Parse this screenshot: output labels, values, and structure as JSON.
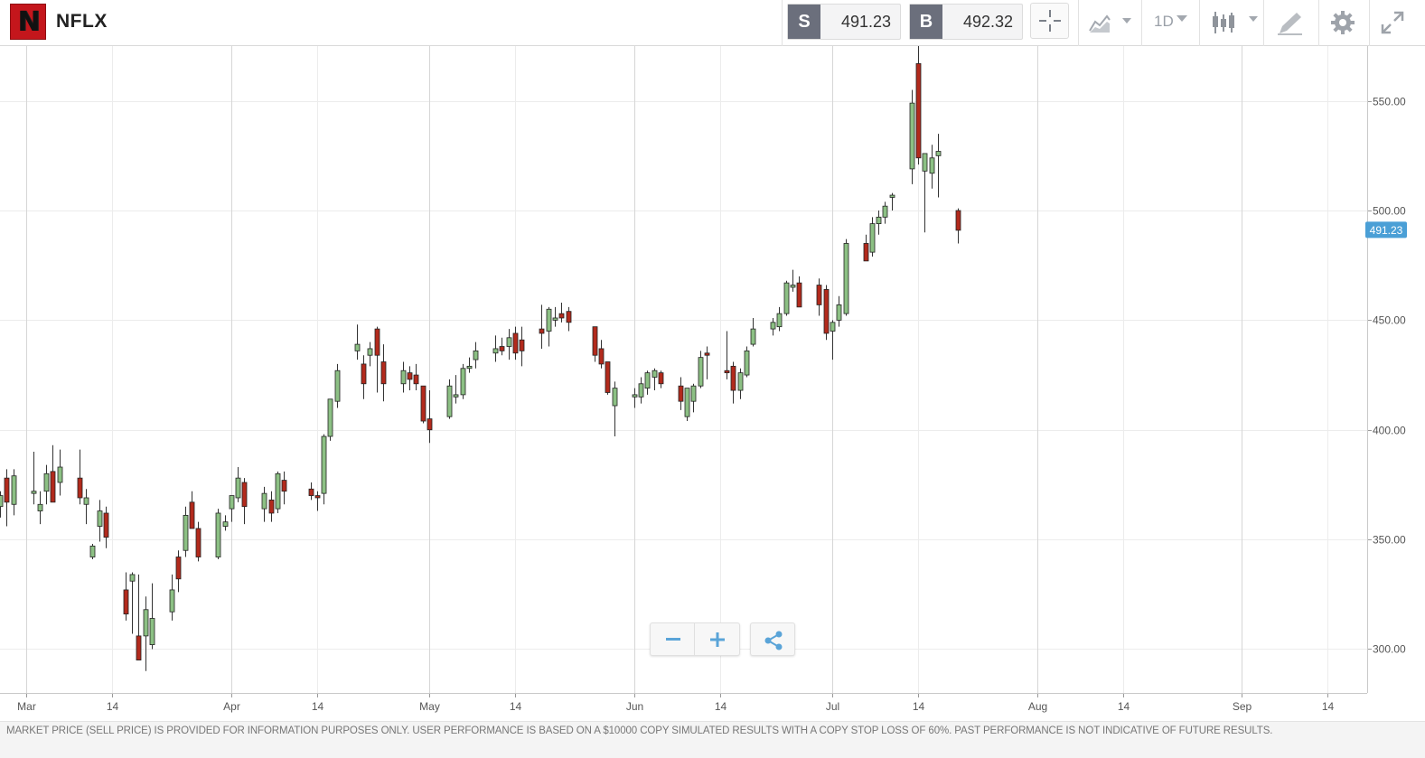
{
  "header": {
    "logo_letter": "N",
    "symbol": "NFLX",
    "sell": {
      "tag": "S",
      "price": "491.23"
    },
    "buy": {
      "tag": "B",
      "price": "492.32"
    },
    "timeframe": "1D"
  },
  "colors": {
    "bull": "#8cc084",
    "bear": "#b22a1c",
    "current_price_badge": "#4a9fd6",
    "grid": "#ececec",
    "month_line": "#d6d6d6"
  },
  "chart_data": {
    "type": "candlestick",
    "title": "",
    "ylim": [
      280,
      575
    ],
    "y_ticks": [
      300,
      350,
      400,
      450,
      500,
      550
    ],
    "y_tick_labels": [
      "300.00",
      "350.00",
      "400.00",
      "450.00",
      "500.00",
      "550.00"
    ],
    "x_range": [
      "2020-02-26",
      "2020-09-20"
    ],
    "x_ticks": [
      {
        "date": "2020-03-01",
        "label": "Mar",
        "month": true
      },
      {
        "date": "2020-03-14",
        "label": "14",
        "month": false
      },
      {
        "date": "2020-04-01",
        "label": "Apr",
        "month": true
      },
      {
        "date": "2020-04-14",
        "label": "14",
        "month": false
      },
      {
        "date": "2020-05-01",
        "label": "May",
        "month": true
      },
      {
        "date": "2020-05-14",
        "label": "14",
        "month": false
      },
      {
        "date": "2020-06-01",
        "label": "Jun",
        "month": true
      },
      {
        "date": "2020-06-14",
        "label": "14",
        "month": false
      },
      {
        "date": "2020-07-01",
        "label": "Jul",
        "month": true
      },
      {
        "date": "2020-07-14",
        "label": "14",
        "month": false
      },
      {
        "date": "2020-08-01",
        "label": "Aug",
        "month": true
      },
      {
        "date": "2020-08-14",
        "label": "14",
        "month": false
      },
      {
        "date": "2020-09-01",
        "label": "Sep",
        "month": true
      },
      {
        "date": "2020-09-14",
        "label": "14",
        "month": false
      }
    ],
    "current_price": 491.23,
    "current_price_label": "491.23",
    "candles": [
      {
        "date": "2020-02-26",
        "open": 365,
        "high": 372,
        "low": 360,
        "close": 370
      },
      {
        "date": "2020-02-27",
        "open": 378,
        "high": 382,
        "low": 356,
        "close": 367
      },
      {
        "date": "2020-02-28",
        "open": 366,
        "high": 382,
        "low": 361,
        "close": 379
      },
      {
        "date": "2020-03-02",
        "open": 371,
        "high": 390,
        "low": 366,
        "close": 372
      },
      {
        "date": "2020-03-03",
        "open": 363,
        "high": 372,
        "low": 357,
        "close": 366
      },
      {
        "date": "2020-03-04",
        "open": 372,
        "high": 384,
        "low": 366,
        "close": 380
      },
      {
        "date": "2020-03-05",
        "open": 381,
        "high": 393,
        "low": 367,
        "close": 367
      },
      {
        "date": "2020-03-06",
        "open": 376,
        "high": 391,
        "low": 370,
        "close": 383
      },
      {
        "date": "2020-03-09",
        "open": 378,
        "high": 391,
        "low": 366,
        "close": 369
      },
      {
        "date": "2020-03-10",
        "open": 366,
        "high": 373,
        "low": 357,
        "close": 369
      },
      {
        "date": "2020-03-11",
        "open": 342,
        "high": 348,
        "low": 341,
        "close": 347
      },
      {
        "date": "2020-03-12",
        "open": 356,
        "high": 368,
        "low": 349,
        "close": 363
      },
      {
        "date": "2020-03-13",
        "open": 362,
        "high": 365,
        "low": 346,
        "close": 351
      },
      {
        "date": "2020-03-16",
        "open": 327,
        "high": 335,
        "low": 313,
        "close": 316
      },
      {
        "date": "2020-03-17",
        "open": 331,
        "high": 335,
        "low": 307,
        "close": 334
      },
      {
        "date": "2020-03-18",
        "open": 306,
        "high": 334,
        "low": 295,
        "close": 295
      },
      {
        "date": "2020-03-19",
        "open": 306,
        "high": 324,
        "low": 290,
        "close": 318
      },
      {
        "date": "2020-03-20",
        "open": 302,
        "high": 330,
        "low": 300,
        "close": 314
      },
      {
        "date": "2020-03-23",
        "open": 317,
        "high": 334,
        "low": 313,
        "close": 327
      },
      {
        "date": "2020-03-24",
        "open": 342,
        "high": 345,
        "low": 326,
        "close": 332
      },
      {
        "date": "2020-03-25",
        "open": 345,
        "high": 365,
        "low": 342,
        "close": 361
      },
      {
        "date": "2020-03-26",
        "open": 367,
        "high": 372,
        "low": 355,
        "close": 355
      },
      {
        "date": "2020-03-27",
        "open": 355,
        "high": 358,
        "low": 340,
        "close": 342
      },
      {
        "date": "2020-03-30",
        "open": 342,
        "high": 364,
        "low": 341,
        "close": 362
      },
      {
        "date": "2020-03-31",
        "open": 356,
        "high": 361,
        "low": 354,
        "close": 358
      },
      {
        "date": "2020-04-01",
        "open": 364,
        "high": 370,
        "low": 358,
        "close": 370
      },
      {
        "date": "2020-04-02",
        "open": 369,
        "high": 383,
        "low": 367,
        "close": 378
      },
      {
        "date": "2020-04-03",
        "open": 376,
        "high": 378,
        "low": 357,
        "close": 365
      },
      {
        "date": "2020-04-06",
        "open": 364,
        "high": 374,
        "low": 358,
        "close": 371
      },
      {
        "date": "2020-04-07",
        "open": 368,
        "high": 372,
        "low": 358,
        "close": 362
      },
      {
        "date": "2020-04-08",
        "open": 364,
        "high": 381,
        "low": 362,
        "close": 380
      },
      {
        "date": "2020-04-09",
        "open": 377,
        "high": 381,
        "low": 366,
        "close": 372
      },
      {
        "date": "2020-04-13",
        "open": 373,
        "high": 376,
        "low": 368,
        "close": 370
      },
      {
        "date": "2020-04-14",
        "open": 370,
        "high": 372,
        "low": 363,
        "close": 369
      },
      {
        "date": "2020-04-15",
        "open": 371,
        "high": 398,
        "low": 366,
        "close": 397
      },
      {
        "date": "2020-04-16",
        "open": 397,
        "high": 414,
        "low": 395,
        "close": 414
      },
      {
        "date": "2020-04-17",
        "open": 413,
        "high": 430,
        "low": 410,
        "close": 427
      },
      {
        "date": "2020-04-20",
        "open": 436,
        "high": 448,
        "low": 432,
        "close": 439
      },
      {
        "date": "2020-04-21",
        "open": 430,
        "high": 434,
        "low": 414,
        "close": 421
      },
      {
        "date": "2020-04-22",
        "open": 434,
        "high": 440,
        "low": 429,
        "close": 437
      },
      {
        "date": "2020-04-23",
        "open": 446,
        "high": 447,
        "low": 417,
        "close": 434
      },
      {
        "date": "2020-04-24",
        "open": 431,
        "high": 439,
        "low": 413,
        "close": 421
      },
      {
        "date": "2020-04-27",
        "open": 421,
        "high": 431,
        "low": 417,
        "close": 427
      },
      {
        "date": "2020-04-28",
        "open": 426,
        "high": 429,
        "low": 418,
        "close": 423
      },
      {
        "date": "2020-04-29",
        "open": 425,
        "high": 430,
        "low": 418,
        "close": 421
      },
      {
        "date": "2020-04-30",
        "open": 420,
        "high": 420,
        "low": 403,
        "close": 404
      },
      {
        "date": "2020-05-01",
        "open": 405,
        "high": 418,
        "low": 394,
        "close": 400
      },
      {
        "date": "2020-05-04",
        "open": 406,
        "high": 423,
        "low": 405,
        "close": 420
      },
      {
        "date": "2020-05-05",
        "open": 415,
        "high": 425,
        "low": 412,
        "close": 416
      },
      {
        "date": "2020-05-06",
        "open": 416,
        "high": 430,
        "low": 414,
        "close": 428
      },
      {
        "date": "2020-05-07",
        "open": 428,
        "high": 433,
        "low": 426,
        "close": 429
      },
      {
        "date": "2020-05-08",
        "open": 432,
        "high": 440,
        "low": 428,
        "close": 436
      },
      {
        "date": "2020-05-11",
        "open": 435,
        "high": 443,
        "low": 431,
        "close": 437
      },
      {
        "date": "2020-05-12",
        "open": 438,
        "high": 442,
        "low": 434,
        "close": 436
      },
      {
        "date": "2020-05-13",
        "open": 438,
        "high": 446,
        "low": 432,
        "close": 442
      },
      {
        "date": "2020-05-14",
        "open": 444,
        "high": 447,
        "low": 432,
        "close": 435
      },
      {
        "date": "2020-05-15",
        "open": 441,
        "high": 447,
        "low": 429,
        "close": 436
      },
      {
        "date": "2020-05-18",
        "open": 446,
        "high": 457,
        "low": 437,
        "close": 444
      },
      {
        "date": "2020-05-19",
        "open": 445,
        "high": 456,
        "low": 438,
        "close": 455
      },
      {
        "date": "2020-05-20",
        "open": 450,
        "high": 456,
        "low": 447,
        "close": 451
      },
      {
        "date": "2020-05-21",
        "open": 453,
        "high": 458,
        "low": 449,
        "close": 451
      },
      {
        "date": "2020-05-22",
        "open": 454,
        "high": 456,
        "low": 445,
        "close": 449
      },
      {
        "date": "2020-05-26",
        "open": 447,
        "high": 447,
        "low": 431,
        "close": 434
      },
      {
        "date": "2020-05-27",
        "open": 437,
        "high": 441,
        "low": 428,
        "close": 430
      },
      {
        "date": "2020-05-28",
        "open": 431,
        "high": 431,
        "low": 416,
        "close": 417
      },
      {
        "date": "2020-05-29",
        "open": 411,
        "high": 422,
        "low": 397,
        "close": 419
      },
      {
        "date": "2020-06-01",
        "open": 415,
        "high": 419,
        "low": 410,
        "close": 416
      },
      {
        "date": "2020-06-02",
        "open": 415,
        "high": 424,
        "low": 412,
        "close": 421
      },
      {
        "date": "2020-06-03",
        "open": 419,
        "high": 427,
        "low": 416,
        "close": 426
      },
      {
        "date": "2020-06-04",
        "open": 424,
        "high": 428,
        "low": 418,
        "close": 427
      },
      {
        "date": "2020-06-05",
        "open": 426,
        "high": 427,
        "low": 419,
        "close": 421
      },
      {
        "date": "2020-06-08",
        "open": 420,
        "high": 424,
        "low": 409,
        "close": 413
      },
      {
        "date": "2020-06-09",
        "open": 406,
        "high": 419,
        "low": 404,
        "close": 419
      },
      {
        "date": "2020-06-10",
        "open": 413,
        "high": 421,
        "low": 408,
        "close": 420
      },
      {
        "date": "2020-06-11",
        "open": 420,
        "high": 436,
        "low": 419,
        "close": 433
      },
      {
        "date": "2020-06-12",
        "open": 435,
        "high": 438,
        "low": 423,
        "close": 434
      },
      {
        "date": "2020-06-15",
        "open": 427,
        "high": 445,
        "low": 423,
        "close": 426
      },
      {
        "date": "2020-06-16",
        "open": 429,
        "high": 431,
        "low": 412,
        "close": 418
      },
      {
        "date": "2020-06-17",
        "open": 418,
        "high": 428,
        "low": 414,
        "close": 426
      },
      {
        "date": "2020-06-18",
        "open": 425,
        "high": 438,
        "low": 424,
        "close": 436
      },
      {
        "date": "2020-06-19",
        "open": 439,
        "high": 451,
        "low": 438,
        "close": 446
      },
      {
        "date": "2020-06-22",
        "open": 446,
        "high": 451,
        "low": 443,
        "close": 449
      },
      {
        "date": "2020-06-23",
        "open": 447,
        "high": 456,
        "low": 445,
        "close": 453
      },
      {
        "date": "2020-06-24",
        "open": 453,
        "high": 468,
        "low": 452,
        "close": 467
      },
      {
        "date": "2020-06-25",
        "open": 465,
        "high": 473,
        "low": 463,
        "close": 466
      },
      {
        "date": "2020-06-26",
        "open": 467,
        "high": 470,
        "low": 456,
        "close": 456
      },
      {
        "date": "2020-06-29",
        "open": 466,
        "high": 469,
        "low": 452,
        "close": 457
      },
      {
        "date": "2020-06-30",
        "open": 464,
        "high": 466,
        "low": 441,
        "close": 444
      },
      {
        "date": "2020-07-01",
        "open": 445,
        "high": 450,
        "low": 432,
        "close": 449
      },
      {
        "date": "2020-07-02",
        "open": 450,
        "high": 461,
        "low": 447,
        "close": 457
      },
      {
        "date": "2020-07-03",
        "open": 453,
        "high": 487,
        "low": 452,
        "close": 485
      },
      {
        "date": "2020-07-06",
        "open": 485,
        "high": 489,
        "low": 477,
        "close": 477
      },
      {
        "date": "2020-07-07",
        "open": 481,
        "high": 497,
        "low": 479,
        "close": 494
      },
      {
        "date": "2020-07-08",
        "open": 494,
        "high": 500,
        "low": 489,
        "close": 497
      },
      {
        "date": "2020-07-09",
        "open": 497,
        "high": 504,
        "low": 494,
        "close": 502
      },
      {
        "date": "2020-07-10",
        "open": 506,
        "high": 508,
        "low": 500,
        "close": 507
      },
      {
        "date": "2020-07-13",
        "open": 519,
        "high": 555,
        "low": 512,
        "close": 549
      },
      {
        "date": "2020-07-14",
        "open": 567,
        "high": 575,
        "low": 521,
        "close": 524
      },
      {
        "date": "2020-07-15",
        "open": 518,
        "high": 525,
        "low": 490,
        "close": 526
      },
      {
        "date": "2020-07-16",
        "open": 517,
        "high": 530,
        "low": 510,
        "close": 524
      },
      {
        "date": "2020-07-17",
        "open": 525,
        "high": 535,
        "low": 506,
        "close": 527
      },
      {
        "date": "2020-07-20",
        "open": 500,
        "high": 501,
        "low": 485,
        "close": 491
      }
    ]
  },
  "zoom": {
    "minus": "−",
    "plus": "+"
  },
  "footer": {
    "disclaimer": "MARKET PRICE (SELL PRICE) IS PROVIDED FOR INFORMATION PURPOSES ONLY. USER PERFORMANCE IS BASED ON A $10000 COPY SIMULATED RESULTS WITH A COPY STOP LOSS OF 60%. PAST PERFORMANCE IS NOT INDICATIVE OF FUTURE RESULTS."
  },
  "icons": {
    "crosshair": "crosshair-icon",
    "chart_type": "chart-type-icon",
    "indicators": "indicators-icon",
    "draw": "draw-icon",
    "settings": "gear-icon",
    "fullscreen": "fullscreen-icon",
    "share": "share-icon"
  }
}
